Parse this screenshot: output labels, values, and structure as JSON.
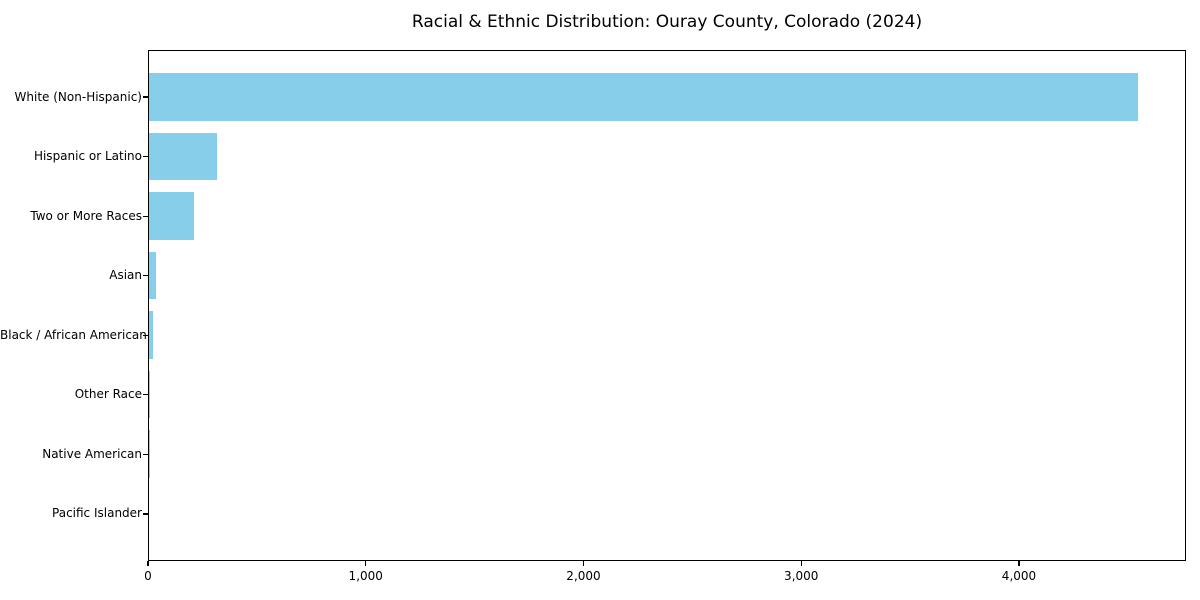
{
  "chart_data": {
    "type": "bar",
    "orientation": "horizontal",
    "title": "Racial & Ethnic Distribution: Ouray County, Colorado (2024)",
    "categories": [
      "White (Non-Hispanic)",
      "Hispanic or Latino",
      "Two or More Races",
      "Asian",
      "Black / African American",
      "Other Race",
      "Native American",
      "Pacific Islander"
    ],
    "values": [
      4540,
      310,
      205,
      32,
      18,
      5,
      3,
      0
    ],
    "xlabel": "",
    "ylabel": "",
    "xlim": [
      0,
      4767
    ],
    "x_ticks": [
      {
        "value": 0,
        "label": "0"
      },
      {
        "value": 1000,
        "label": "1,000"
      },
      {
        "value": 2000,
        "label": "2,000"
      },
      {
        "value": 3000,
        "label": "3,000"
      },
      {
        "value": 4000,
        "label": "4,000"
      }
    ],
    "bar_color": "#87CEEB",
    "background_color": "#FFFFFF",
    "text_color": "#000000",
    "grid": false,
    "legend": null
  }
}
